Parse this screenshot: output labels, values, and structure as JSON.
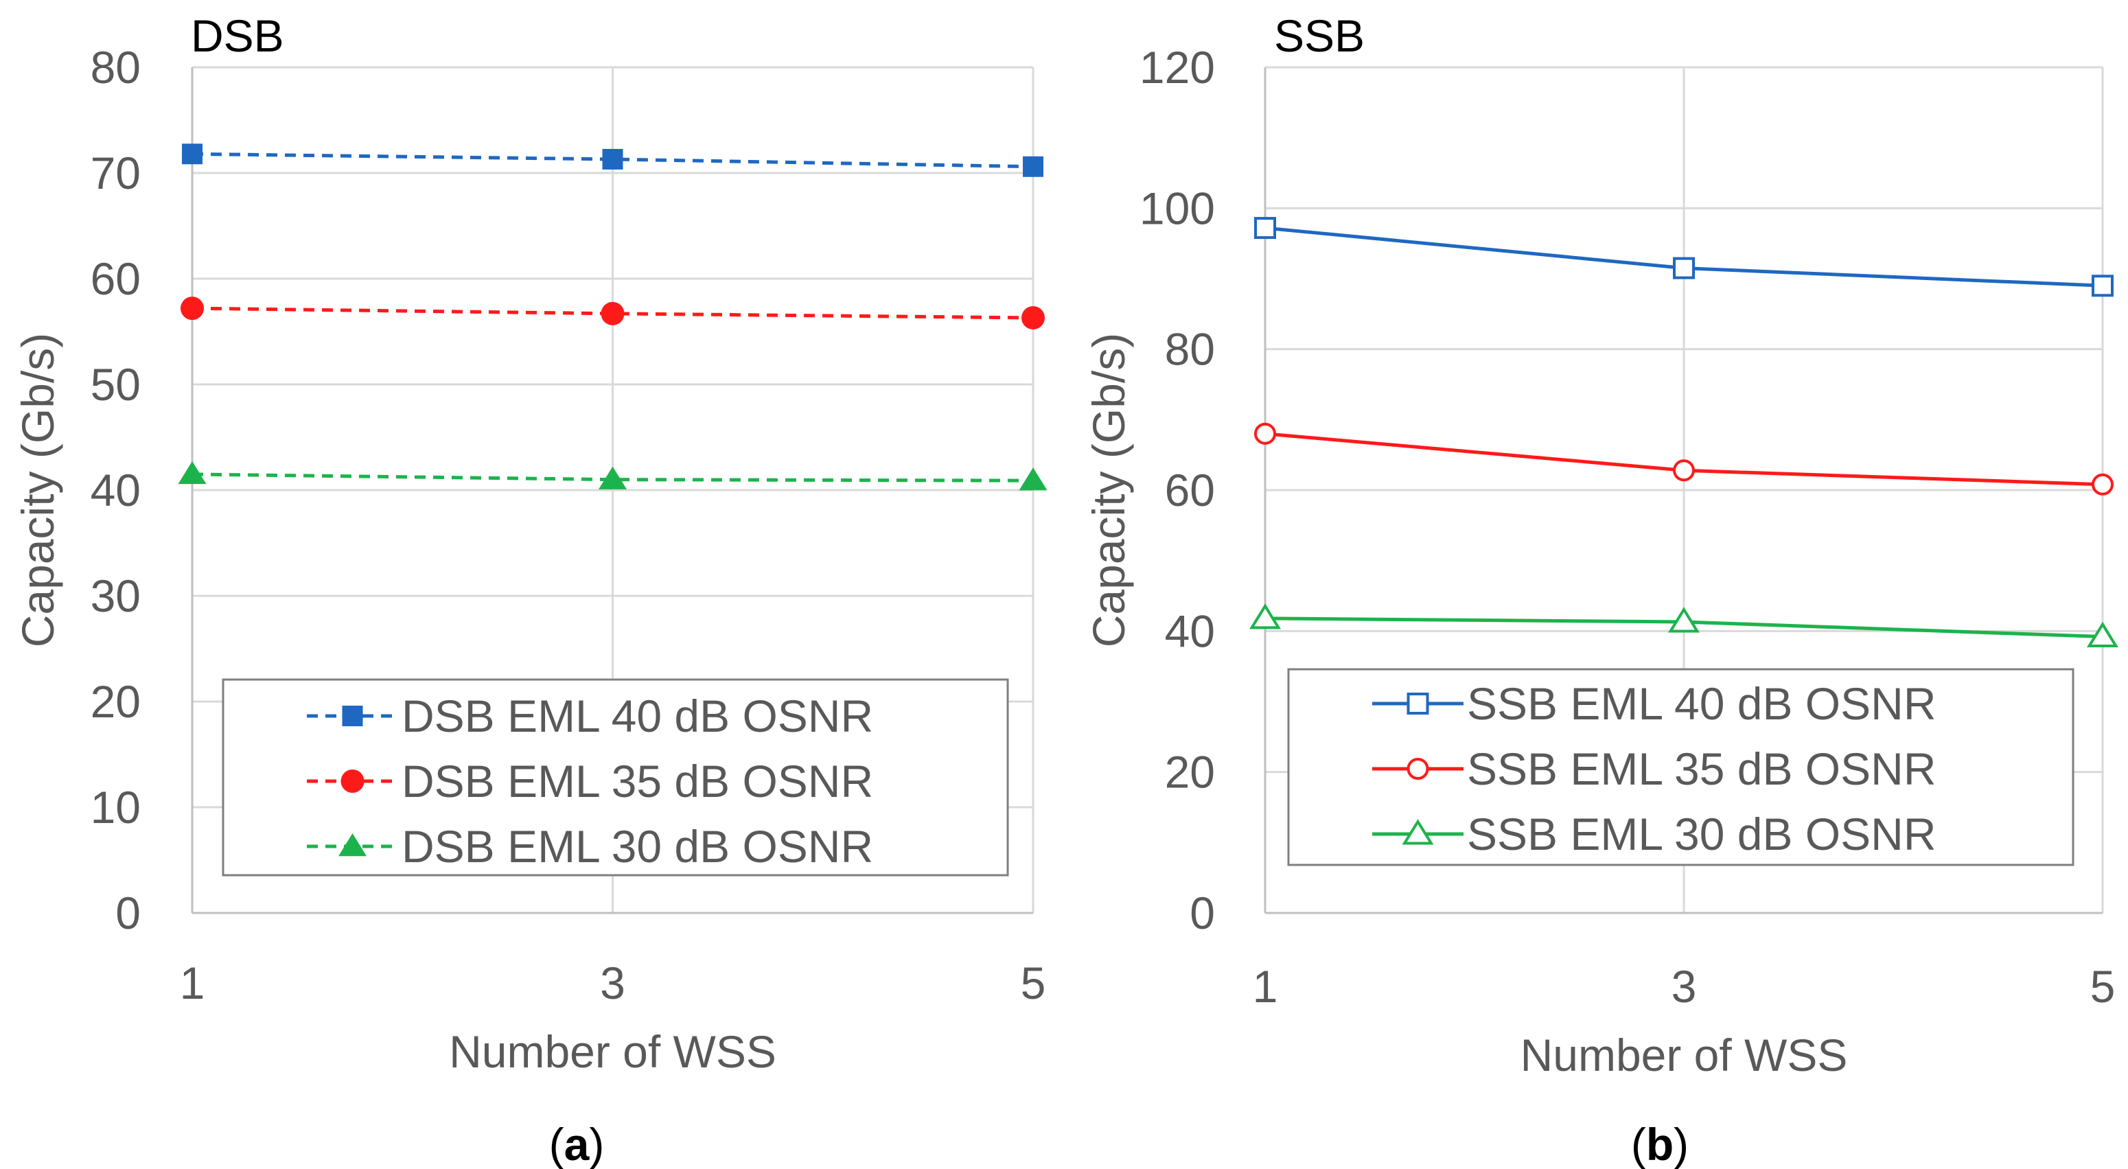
{
  "figure": {
    "captions": [
      "(a)",
      "(b)"
    ]
  },
  "chart_data": [
    {
      "type": "line",
      "title": "DSB",
      "caption": "(a)",
      "caption_letter": "a",
      "xlabel": "Number of WSS",
      "ylabel": "Capacity (Gb/s)",
      "x": [
        1,
        3,
        5
      ],
      "x_ticks": [
        "1",
        "3",
        "5"
      ],
      "ylim": [
        0,
        80
      ],
      "y_ticks": [
        0,
        10,
        20,
        30,
        40,
        50,
        60,
        70,
        80
      ],
      "grid": true,
      "legend_position": "bottom",
      "series": [
        {
          "name": "DSB EML 40 dB OSNR",
          "values": [
            71.8,
            71.3,
            70.6
          ],
          "color": "#1f68c1",
          "marker": "filled-square",
          "line": "dashed"
        },
        {
          "name": "DSB EML 35 dB OSNR",
          "values": [
            57.2,
            56.7,
            56.3
          ],
          "color": "#ff1a1a",
          "marker": "filled-circle",
          "line": "dashed"
        },
        {
          "name": "DSB EML 30 dB OSNR",
          "values": [
            41.5,
            41.0,
            40.9
          ],
          "color": "#1db34c",
          "marker": "filled-triangle",
          "line": "dashed"
        }
      ]
    },
    {
      "type": "line",
      "title": "SSB",
      "caption": "(b)",
      "caption_letter": "b",
      "xlabel": "Number of WSS",
      "ylabel": "Capacity (Gb/s)",
      "x": [
        1,
        3,
        5
      ],
      "x_ticks": [
        "1",
        "3",
        "5"
      ],
      "ylim": [
        0,
        120
      ],
      "y_ticks": [
        0,
        20,
        40,
        60,
        80,
        100,
        120
      ],
      "grid": true,
      "legend_position": "bottom",
      "series": [
        {
          "name": "SSB EML 40 dB OSNR",
          "values": [
            97.2,
            91.5,
            89.0
          ],
          "color": "#1f68c1",
          "marker": "open-square",
          "line": "solid"
        },
        {
          "name": "SSB EML 35 dB OSNR",
          "values": [
            68.0,
            62.8,
            60.8
          ],
          "color": "#ff1a1a",
          "marker": "open-circle",
          "line": "solid"
        },
        {
          "name": "SSB EML 30 dB OSNR",
          "values": [
            41.8,
            41.3,
            39.2
          ],
          "color": "#1db34c",
          "marker": "open-triangle",
          "line": "solid"
        }
      ]
    }
  ]
}
